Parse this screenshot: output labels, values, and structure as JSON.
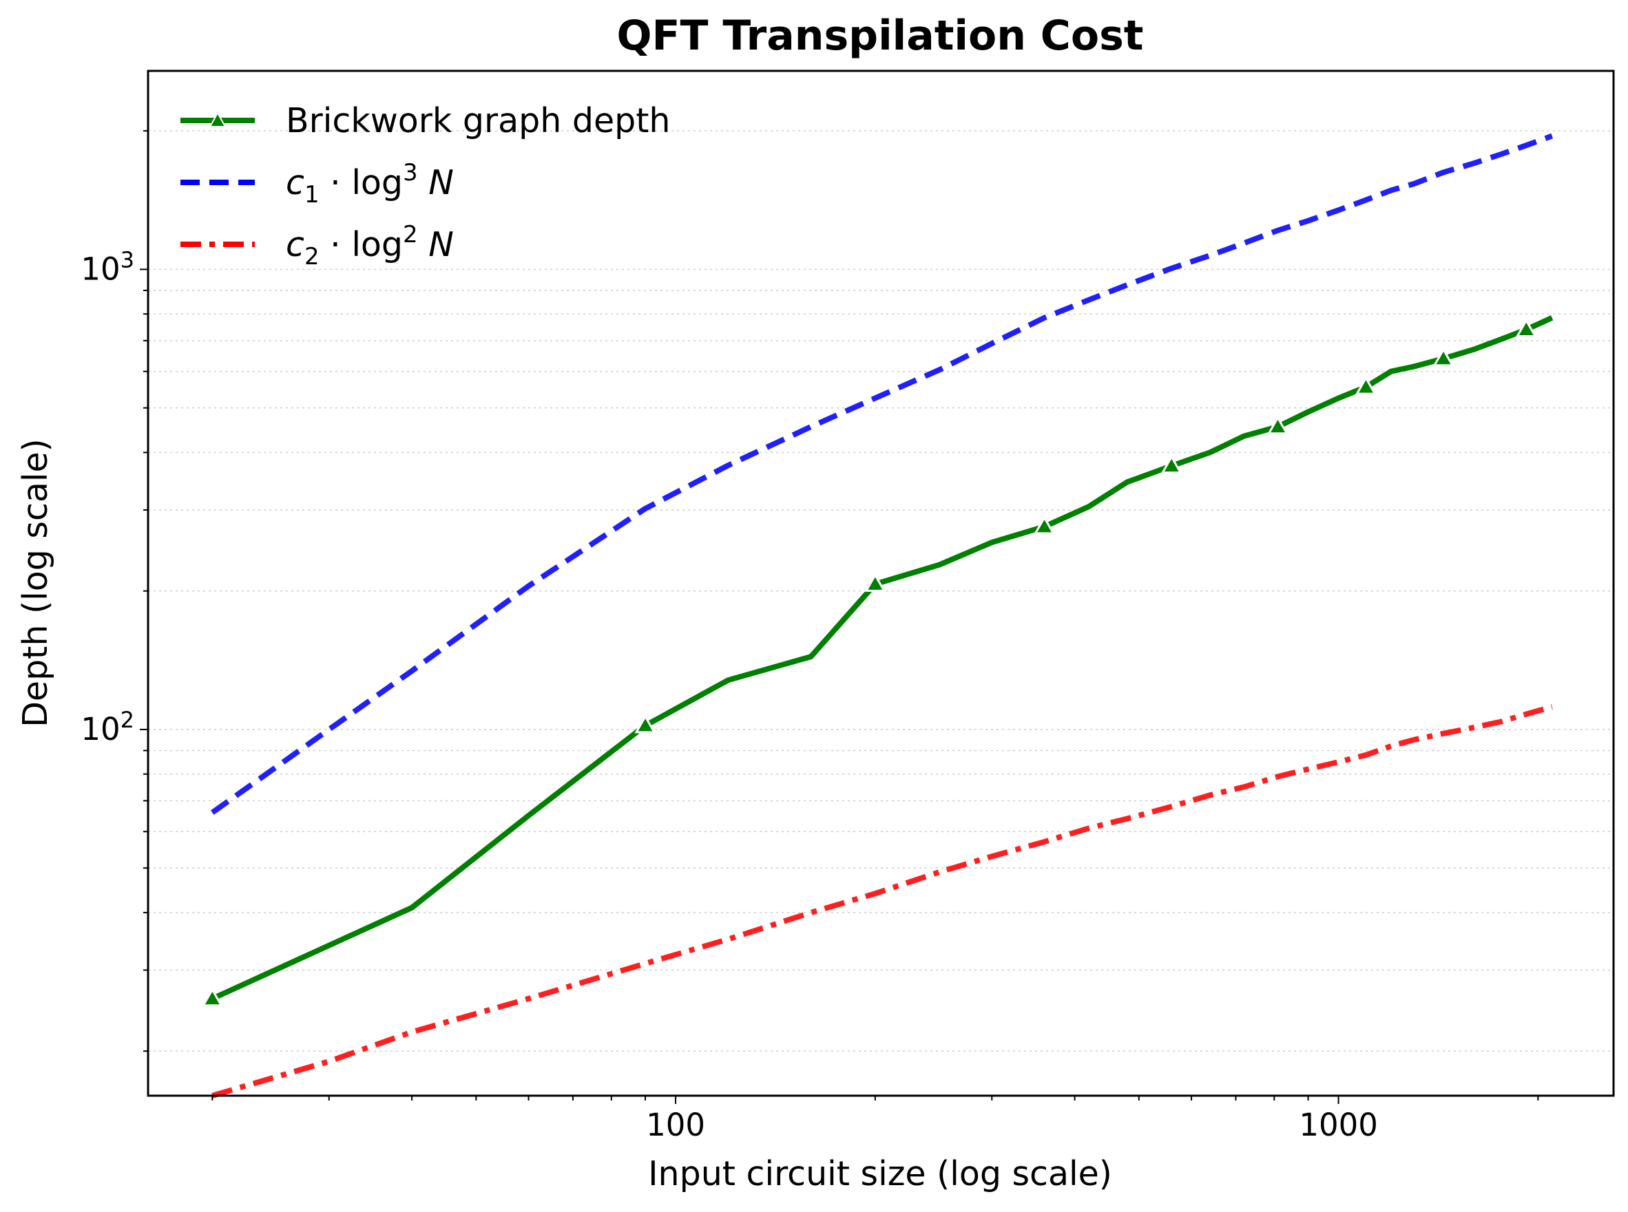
{
  "chart_data": {
    "type": "line",
    "title": "QFT Transpilation Cost",
    "xlabel": "Input circuit size (log scale)",
    "ylabel": "Depth (log scale)",
    "xscale": "log",
    "yscale": "log",
    "xlim": [
      16,
      2600
    ],
    "ylim": [
      16,
      2700
    ],
    "x_ticks": [
      "100",
      "1000"
    ],
    "y_ticks": [
      {
        "base": "10",
        "exp": "2"
      },
      {
        "base": "10",
        "exp": "3"
      }
    ],
    "grid": "y-axis minor and major, dotted",
    "legend_position": "upper-left",
    "series": [
      {
        "name": "Brickwork graph depth",
        "color": "#008000",
        "style": "solid-triangle-markers",
        "x": [
          20,
          40,
          60,
          90,
          120,
          160,
          200,
          250,
          300,
          360,
          420,
          480,
          560,
          640,
          720,
          810,
          900,
          1000,
          1100,
          1200,
          1300,
          1440,
          1600,
          1760,
          1920,
          2100
        ],
        "y": [
          26,
          41,
          65,
          102,
          128,
          144,
          207,
          228,
          255,
          276,
          305,
          345,
          374,
          400,
          434,
          455,
          490,
          525,
          555,
          600,
          615,
          640,
          670,
          705,
          740,
          785
        ],
        "markers_at": [
          20,
          90,
          200,
          360,
          560,
          810,
          1100,
          1440,
          1920
        ]
      },
      {
        "name": "c1 · log³ N",
        "legend_math": {
          "coef": "c",
          "sub": "1",
          "fn": "log",
          "exp": "3",
          "var": "N"
        },
        "color": "#0000ff",
        "style": "dashed",
        "x": [
          20,
          30,
          40,
          60,
          90,
          120,
          160,
          200,
          250,
          300,
          360,
          420,
          480,
          560,
          640,
          720,
          810,
          900,
          1000,
          1100,
          1200,
          1300,
          1440,
          1600,
          1760,
          1920,
          2100
        ],
        "y": [
          66,
          100,
          134,
          205,
          302,
          375,
          455,
          525,
          605,
          690,
          785,
          858,
          925,
          1005,
          1072,
          1140,
          1215,
          1275,
          1345,
          1415,
          1485,
          1535,
          1625,
          1700,
          1780,
          1860,
          1950
        ]
      },
      {
        "name": "c2 · log² N",
        "legend_math": {
          "coef": "c",
          "sub": "2",
          "fn": "log",
          "exp": "2",
          "var": "N"
        },
        "color": "#ff0000",
        "style": "dashdot",
        "x": [
          20,
          30,
          40,
          60,
          90,
          120,
          160,
          200,
          250,
          300,
          360,
          420,
          480,
          560,
          640,
          720,
          810,
          900,
          1000,
          1100,
          1200,
          1300,
          1440,
          1600,
          1760,
          1920,
          2100
        ],
        "y": [
          16,
          19,
          22,
          26,
          31,
          35,
          40,
          44,
          49,
          53,
          57,
          61,
          64,
          68,
          72,
          75,
          79,
          82,
          85,
          88,
          92,
          95,
          98,
          101,
          104,
          108,
          112
        ]
      }
    ]
  }
}
